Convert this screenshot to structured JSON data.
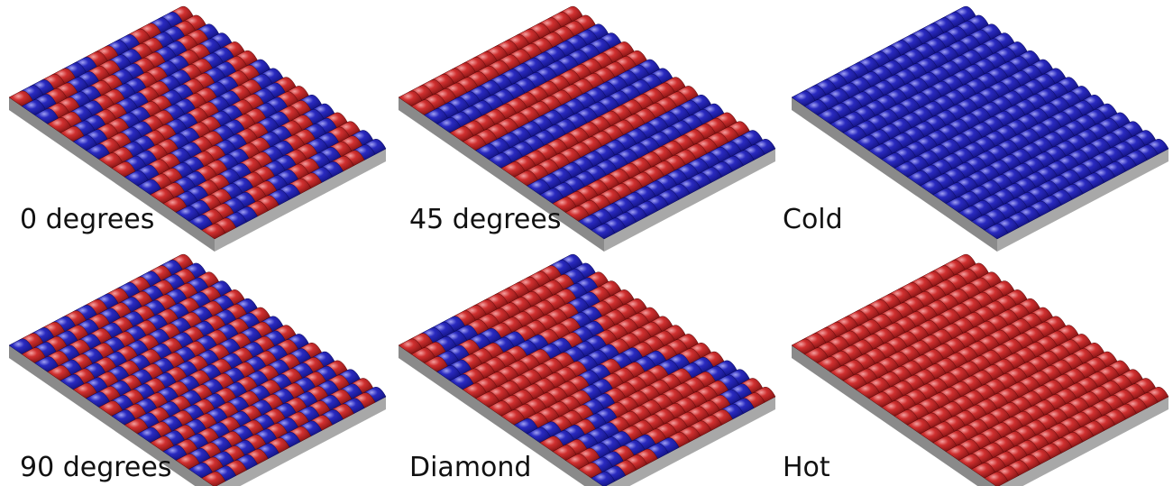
{
  "panels": [
    {
      "label": "0 degrees"
    },
    {
      "label": "45 degrees"
    },
    {
      "label": "Cold"
    },
    {
      "label": "90 degrees"
    },
    {
      "label": "Diamond"
    },
    {
      "label": "Hot"
    }
  ]
}
